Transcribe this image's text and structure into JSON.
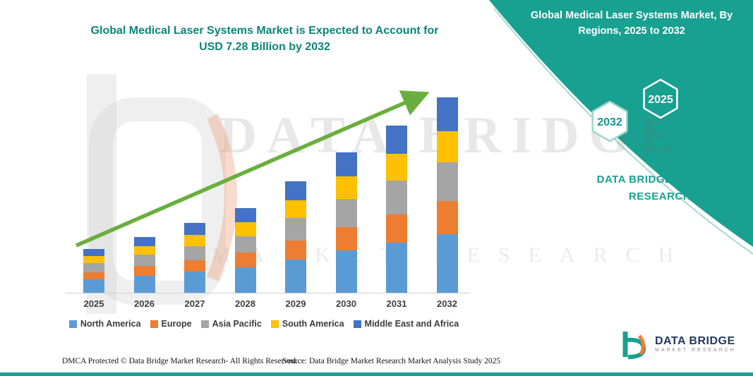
{
  "header": {
    "title_line1": "Global Medical Laser Systems Market is Expected to Account for",
    "title_line2": "USD 7.28 Billion by 2032"
  },
  "right_panel": {
    "title": "Global Medical Laser Systems Market, By Regions, 2025 to 2032",
    "hexagon_left": "2032",
    "hexagon_right": "2025",
    "brand_caption": "DATA BRIDGE MARKET RESEARCH",
    "accent_color": "#18A091"
  },
  "watermark": {
    "line1": "DATA BRIDGE",
    "line2": "MARKET RESEARCH"
  },
  "logo": {
    "name": "DATA BRIDGE",
    "subtext": "MARKET RESEARCH"
  },
  "footer": {
    "dmca": "DMCA Protected © Data Bridge Market Research-  All Rights Reserved.",
    "source": "Source: Data Bridge Market Research  Market Analysis Study 2025"
  },
  "chart_data": {
    "type": "bar",
    "stacked": true,
    "title": "Global Medical Laser Systems Market, By Regions, 2025 to 2032",
    "unit": "USD Billion",
    "categories": [
      "2025",
      "2026",
      "2027",
      "2028",
      "2029",
      "2030",
      "2031",
      "2032"
    ],
    "series": [
      {
        "name": "North America",
        "color": "#5B9BD5",
        "values": [
          0.49,
          0.63,
          0.78,
          0.95,
          1.25,
          1.57,
          1.87,
          2.18
        ]
      },
      {
        "name": "Europe",
        "color": "#ED7D31",
        "values": [
          0.28,
          0.36,
          0.44,
          0.54,
          0.71,
          0.89,
          1.06,
          1.24
        ]
      },
      {
        "name": "Asia Pacific",
        "color": "#A5A5A5",
        "values": [
          0.33,
          0.42,
          0.52,
          0.63,
          0.83,
          1.05,
          1.25,
          1.46
        ]
      },
      {
        "name": "South America",
        "color": "#FFC000",
        "values": [
          0.26,
          0.33,
          0.42,
          0.51,
          0.67,
          0.84,
          1.0,
          1.16
        ]
      },
      {
        "name": "Middle East and Africa",
        "color": "#4472C4",
        "values": [
          0.28,
          0.35,
          0.45,
          0.53,
          0.71,
          0.89,
          1.06,
          1.24
        ]
      }
    ],
    "totals": [
      1.64,
      2.09,
      2.61,
      3.16,
      4.17,
      5.24,
      6.24,
      7.28
    ],
    "stated_value_2032_usd_billion": 7.28,
    "ylim": [
      0,
      7.28
    ],
    "grid": false,
    "legend_position": "bottom",
    "annotation": "green upward trend arrow across bars"
  }
}
